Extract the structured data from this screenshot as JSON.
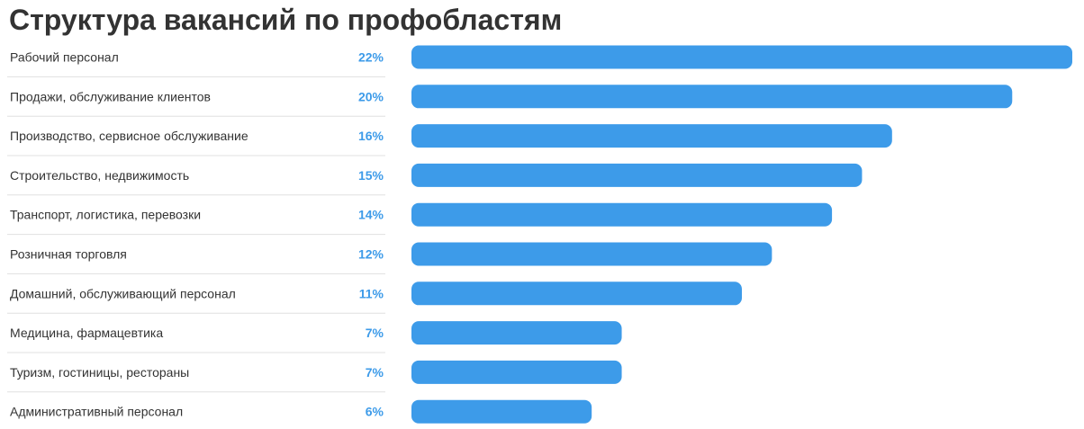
{
  "chart_data": {
    "type": "bar",
    "orientation": "horizontal",
    "title": "Структура вакансий по профобластям",
    "categories": [
      "Рабочий персонал",
      "Продажи, обслуживание клиентов",
      "Производство, сервисное обслуживание",
      "Строительство, недвижимость",
      "Транспорт, логистика, перевозки",
      "Розничная торговля",
      "Домашний, обслуживающий персонал",
      "Медицина, фармацевтика",
      "Туризм, гостиницы, рестораны",
      "Административный персонал"
    ],
    "values": [
      22,
      20,
      16,
      15,
      14,
      12,
      11,
      7,
      7,
      6
    ],
    "value_labels": [
      "22%",
      "20%",
      "16%",
      "15%",
      "14%",
      "12%",
      "11%",
      "7%",
      "7%",
      "6%"
    ],
    "unit": "%",
    "xlim": [
      0,
      22
    ],
    "grid": false,
    "legend": "none",
    "colors": {
      "bar": "#3d9be9",
      "value_label": "#3d9be9",
      "category_label": "#333333",
      "separator": "#e0e0e0"
    }
  }
}
